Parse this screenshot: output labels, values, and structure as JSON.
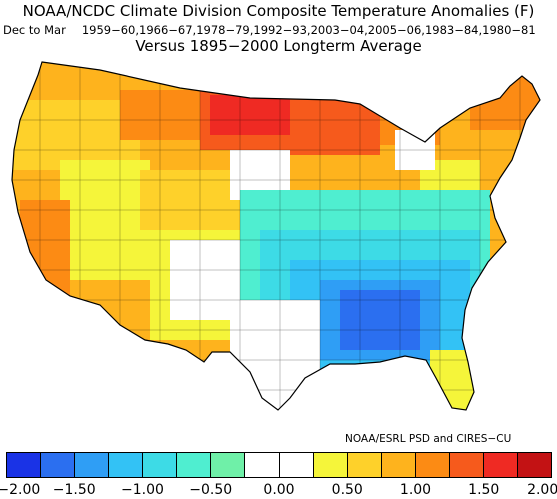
{
  "title": "NOAA/NCDC Climate Division Composite Temperature Anomalies (F)",
  "season": "Dec to Mar",
  "years": "1959−60,1966−67,1978−79,1992−93,2003−04,2005−06,1983−84,1980−81",
  "baseline": "Versus 1895−2000 Longterm Average",
  "credit": "NOAA/ESRL PSD and CIRES−CU",
  "legend": {
    "bins": [
      "#1a33e6",
      "#2b6ff0",
      "#2f9ef5",
      "#33c2f5",
      "#3ddbe6",
      "#4feed0",
      "#6ff0a8",
      "#ffffff",
      "#ffffff",
      "#f5f53a",
      "#fed12a",
      "#feb31d",
      "#fc8b14",
      "#f65a1c",
      "#ef2a23",
      "#c31214"
    ],
    "labels": [
      "−2.00",
      "−1.50",
      "−1.00",
      "−0.50",
      "0.00",
      "0.50",
      "1.00",
      "1.50",
      "2.00"
    ],
    "min": -2.0,
    "max": 2.0
  },
  "map_data": {
    "type": "choropleth-climate-divisions",
    "region": "Contiguous United States",
    "units": "F",
    "regional_anomalies_F": [
      {
        "region": "Northern Plains / Upper Midwest (MN, ND)",
        "value": 1.75
      },
      {
        "region": "Northern Great Lakes (WI, MI)",
        "value": 1.25
      },
      {
        "region": "Montana / Northern Rockies",
        "value": 1.0
      },
      {
        "region": "New England (Maine)",
        "value": 1.0
      },
      {
        "region": "Pacific Northwest",
        "value": 0.75
      },
      {
        "region": "California / Southwest",
        "value": 0.75
      },
      {
        "region": "Great Basin / Intermountain",
        "value": 0.5
      },
      {
        "region": "Central Plains (KS, NE)",
        "value": -0.25
      },
      {
        "region": "Texas / Oklahoma",
        "value": -0.75
      },
      {
        "region": "Ohio Valley / Appalachians",
        "value": -0.75
      },
      {
        "region": "Deep South (MS, AL, LA)",
        "value": -1.75
      },
      {
        "region": "Southeast Atlantic (GA, Carolinas)",
        "value": -1.25
      },
      {
        "region": "Florida",
        "value": 0.5
      }
    ]
  }
}
